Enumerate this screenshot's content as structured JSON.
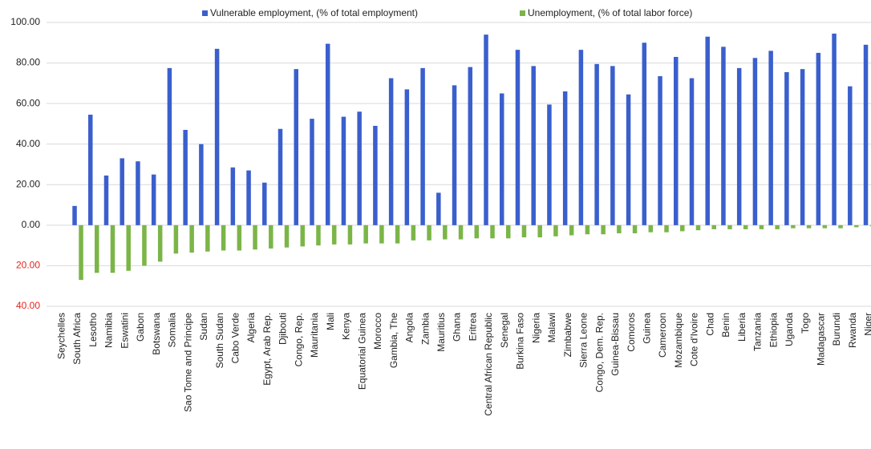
{
  "chart_data": {
    "type": "bar",
    "categories": [
      "Seychelles",
      "South Africa",
      "Lesotho",
      "Namibia",
      "Eswatini",
      "Gabon",
      "Botswana",
      "Somalia",
      "Sao Tome and Principe",
      "Sudan",
      "South Sudan",
      "Cabo Verde",
      "Algeria",
      "Egypt, Arab Rep.",
      "Djibouti",
      "Congo, Rep.",
      "Mauritania",
      "Mali",
      "Kenya",
      "Equatorial Guinea",
      "Morocco",
      "Gambia, The",
      "Angola",
      "Zambia",
      "Mauritius",
      "Ghana",
      "Eritrea",
      "Central African Republic",
      "Senegal",
      "Burkina Faso",
      "Nigeria",
      "Malawi",
      "Zimbabwe",
      "Sierra Leone",
      "Congo, Dem. Rep.",
      "Guinea-Bissau",
      "Comoros",
      "Guinea",
      "Cameroon",
      "Mozambique",
      "Cote d'Ivoire",
      "Chad",
      "Benin",
      "Liberia",
      "Tanzania",
      "Ethiopia",
      "Uganda",
      "Togo",
      "Madagascar",
      "Burundi",
      "Rwanda",
      "Niger"
    ],
    "series": [
      {
        "name": "Vulnerable employment, (% of total employment)",
        "color": "#3a5fcd",
        "values": [
          null,
          9.5,
          54.5,
          24.5,
          33,
          31.5,
          25,
          77.5,
          47,
          40,
          87,
          28.5,
          27,
          21,
          47.5,
          77,
          52.5,
          89.5,
          53.5,
          56,
          49,
          72.5,
          67,
          77.5,
          16,
          69,
          78,
          94,
          65,
          86.5,
          78.5,
          59.5,
          66,
          86.5,
          79.5,
          78.5,
          64.5,
          90,
          73.5,
          83,
          72.5,
          93,
          88,
          77.5,
          82.5,
          86,
          75.5,
          77,
          85,
          94.5,
          68.5,
          89
        ]
      },
      {
        "name": "Unemployment, (% of total labor force)",
        "color": "#7bb548",
        "values": [
          null,
          -27,
          -23.5,
          -23.5,
          -22.5,
          -20,
          -18,
          -14,
          -13.5,
          -13,
          -12.5,
          -12.5,
          -12,
          -11.5,
          -11,
          -10.5,
          -10,
          -9.5,
          -9.5,
          -9,
          -9,
          -9,
          -7.5,
          -7.5,
          -7,
          -7,
          -6.5,
          -6.5,
          -6.5,
          -6,
          -6,
          -5.5,
          -5,
          -4.5,
          -4.5,
          -4,
          -4,
          -3.5,
          -3.5,
          -3,
          -2.5,
          -2,
          -2,
          -2,
          -2,
          -2,
          -1.5,
          -1.5,
          -1.5,
          -1.5,
          -1,
          -0.5
        ]
      }
    ],
    "ylim": [
      -40,
      100
    ],
    "yticks": [
      {
        "value": -40,
        "label": "40.00"
      },
      {
        "value": -20,
        "label": "20.00"
      },
      {
        "value": 0,
        "label": "0.00"
      },
      {
        "value": 20,
        "label": "20.00"
      },
      {
        "value": 40,
        "label": "40.00"
      },
      {
        "value": 60,
        "label": "60.00"
      },
      {
        "value": 80,
        "label": "80.00"
      },
      {
        "value": 100,
        "label": "100.00"
      }
    ],
    "grid": true,
    "legend": "top"
  }
}
